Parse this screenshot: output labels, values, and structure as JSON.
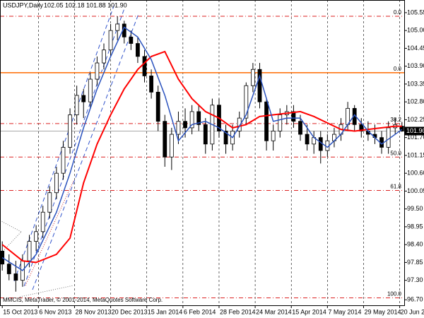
{
  "chart_data": {
    "type": "candlestick",
    "header": {
      "symbol": "USDJPY,Daily",
      "ohlc_text": "102.05 102.18 101.88 101.90"
    },
    "copyright": "MMCIS, MetaTrader, © 2001-2014, MetaQuotes Software Corp.",
    "xlim": [
      -1,
      178
    ],
    "ylim": [
      96.53,
      105.94
    ],
    "grid": "vertical",
    "xticks": [
      {
        "value": 0,
        "label": "15 Oct 2013"
      },
      {
        "value": 16,
        "label": "6 Nov 2013"
      },
      {
        "value": 32,
        "label": "28 Nov 2013"
      },
      {
        "value": 48,
        "label": "20 Dec 2013"
      },
      {
        "value": 64,
        "label": "15 Jan 2014"
      },
      {
        "value": 80,
        "label": "6 Feb 2014"
      },
      {
        "value": 96,
        "label": "28 Feb 2014"
      },
      {
        "value": 112,
        "label": "24 Mar 2014"
      },
      {
        "value": 128,
        "label": "15 Apr 2014"
      },
      {
        "value": 144,
        "label": "7 May 2014"
      },
      {
        "value": 160,
        "label": "29 May 2014"
      },
      {
        "value": 176,
        "label": "20 Jun 2014"
      }
    ],
    "yticks": [
      105.55,
      {
        "value": 105,
        "label": "105.00"
      },
      104.45,
      {
        "value": 103.9,
        "label": "103.90"
      },
      103.35,
      {
        "value": 102.8,
        "label": "102.80"
      },
      102.25,
      {
        "value": 101.7,
        "label": "101.70"
      },
      101.15,
      {
        "value": 100.6,
        "label": "100.60"
      },
      100.05,
      {
        "value": 99.5,
        "label": "99.50"
      },
      98.95,
      {
        "value": 98.4,
        "label": "98.40"
      },
      97.85,
      {
        "value": 97.3,
        "label": "97.30"
      },
      {
        "value": 96.7,
        "label": "96.70"
      }
    ],
    "candles": {
      "x": [
        0,
        3,
        6,
        9,
        12,
        15,
        18,
        21,
        24,
        27,
        30,
        33,
        36,
        39,
        42,
        45,
        48,
        51,
        54,
        57,
        60,
        63,
        66,
        69,
        72,
        75,
        78,
        81,
        84,
        87,
        90,
        93,
        96,
        99,
        102,
        105,
        108,
        111,
        114,
        117,
        120,
        123,
        126,
        129,
        132,
        135,
        138,
        141,
        144,
        147,
        150,
        153,
        156,
        159,
        162,
        165,
        168,
        171,
        174,
        177
      ],
      "open": [
        98.2,
        97.8,
        97.5,
        97.3,
        97.9,
        98.5,
        98.8,
        99.4,
        100.0,
        100.6,
        101.4,
        102.4,
        103.0,
        102.8,
        103.5,
        104.0,
        104.4,
        105.0,
        105.2,
        104.8,
        104.6,
        104.2,
        103.6,
        103.1,
        102.2,
        101.1,
        101.8,
        102.2,
        102.0,
        102.5,
        102.1,
        101.5,
        102.7,
        101.9,
        101.5,
        101.9,
        102.3,
        103.3,
        103.8,
        102.8,
        101.6,
        101.9,
        102.4,
        102.5,
        102.2,
        101.8,
        101.5,
        101.7,
        101.3,
        101.6,
        101.8,
        102.1,
        102.6,
        102.1,
        101.9,
        101.8,
        101.7,
        101.4,
        102.0,
        102.05
      ],
      "high": [
        98.5,
        98.1,
        97.9,
        98.1,
        98.7,
        99.0,
        99.6,
        100.2,
        100.8,
        101.6,
        102.6,
        103.3,
        103.2,
        103.7,
        104.2,
        104.6,
        105.2,
        105.44,
        105.3,
        105.0,
        104.8,
        104.4,
        103.8,
        103.3,
        102.4,
        102.0,
        102.5,
        102.6,
        102.7,
        102.7,
        102.3,
        102.9,
        102.9,
        102.1,
        102.1,
        102.5,
        103.4,
        104.0,
        104.0,
        102.9,
        102.1,
        102.6,
        102.7,
        102.7,
        102.4,
        102.1,
        101.9,
        101.9,
        101.8,
        102.0,
        102.3,
        102.8,
        102.7,
        102.3,
        102.2,
        102.1,
        101.9,
        102.2,
        102.3,
        102.18
      ],
      "low": [
        97.6,
        97.3,
        96.95,
        97.1,
        97.7,
        98.2,
        98.6,
        99.2,
        99.8,
        100.4,
        101.2,
        102.1,
        102.3,
        102.6,
        103.3,
        103.8,
        104.2,
        104.7,
        104.6,
        104.4,
        104.0,
        103.4,
        102.9,
        101.9,
        100.8,
        100.7,
        101.5,
        101.7,
        101.8,
        101.9,
        101.2,
        101.3,
        101.7,
        101.2,
        101.3,
        101.7,
        102.1,
        103.1,
        102.6,
        101.3,
        101.3,
        101.7,
        102.1,
        102.0,
        101.6,
        101.3,
        101.2,
        100.9,
        101.1,
        101.4,
        101.6,
        101.9,
        101.9,
        101.7,
        101.6,
        101.5,
        101.2,
        101.2,
        101.8,
        101.88
      ],
      "close": [
        97.8,
        97.5,
        97.3,
        97.9,
        98.5,
        98.8,
        99.4,
        100.0,
        100.6,
        101.4,
        102.4,
        103.0,
        102.8,
        103.5,
        104.0,
        104.4,
        105.0,
        105.2,
        104.8,
        104.6,
        104.2,
        103.6,
        103.1,
        102.2,
        101.1,
        101.8,
        102.2,
        102.0,
        102.5,
        102.1,
        101.5,
        102.7,
        101.9,
        101.5,
        101.9,
        102.3,
        103.3,
        103.8,
        102.8,
        101.6,
        101.9,
        102.4,
        102.5,
        102.2,
        101.8,
        101.5,
        101.7,
        101.3,
        101.6,
        101.8,
        102.1,
        102.6,
        102.1,
        101.9,
        101.8,
        101.7,
        101.4,
        102.0,
        102.1,
        101.9
      ]
    },
    "lines": [
      {
        "color": "#ff0000",
        "x": [
          0,
          9,
          15,
          24,
          30,
          36,
          42,
          48,
          54,
          60,
          66,
          72,
          78,
          84,
          90,
          96,
          102,
          108,
          114,
          120,
          126,
          132,
          138,
          144,
          150,
          156,
          162,
          168,
          174,
          177
        ],
        "values": [
          98.4,
          97.9,
          97.85,
          98.1,
          98.6,
          100.3,
          101.5,
          102.4,
          103.2,
          103.8,
          104.2,
          104.35,
          103.5,
          102.9,
          102.5,
          102.3,
          102.0,
          102.1,
          102.35,
          102.4,
          102.45,
          102.5,
          102.35,
          102.15,
          101.95,
          101.9,
          101.95,
          102.0,
          102.05,
          102.05
        ]
      },
      {
        "color": "#2a52be",
        "x": [
          0,
          9,
          15,
          24,
          30,
          36,
          42,
          48,
          54,
          60,
          66,
          72,
          78,
          84,
          90,
          96,
          102,
          108,
          114,
          120,
          126,
          132,
          138,
          144,
          150,
          156,
          162,
          168,
          174,
          177
        ],
        "values": [
          98.0,
          97.6,
          98.1,
          99.4,
          100.6,
          102.0,
          103.2,
          104.2,
          105.1,
          104.8,
          104.1,
          103.0,
          101.6,
          102.1,
          102.2,
          102.0,
          101.7,
          102.4,
          103.6,
          102.2,
          102.3,
          102.3,
          101.7,
          101.4,
          101.8,
          102.4,
          101.9,
          101.5,
          101.8,
          101.95
        ]
      }
    ],
    "fib_levels": [
      {
        "level": "0.0",
        "price": 105.44
      },
      {
        "level": "38.2",
        "price": 102.13
      },
      {
        "level": "50.0",
        "price": 101.1
      },
      {
        "level": "61.8",
        "price": 100.07
      },
      {
        "level": "100.0",
        "price": 96.76
      }
    ],
    "hline": {
      "level": "0.0",
      "price": 103.7,
      "color": "#ff6a00"
    },
    "last_price": {
      "value": 101.9,
      "label": "101.90"
    }
  }
}
